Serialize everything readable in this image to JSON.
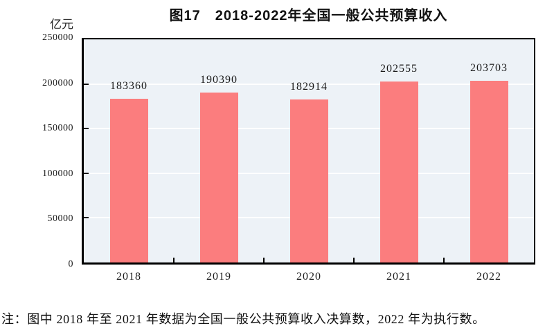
{
  "chart_data": {
    "type": "bar",
    "title": "图17　2018-2022年全国一般公共预算收入",
    "unit_label": "亿元",
    "categories": [
      "2018",
      "2019",
      "2020",
      "2021",
      "2022"
    ],
    "values": [
      183360,
      190390,
      182914,
      202555,
      203703
    ],
    "value_labels": [
      "183360",
      "190390",
      "182914",
      "202555",
      "203703"
    ],
    "ylim": [
      0,
      250000
    ],
    "yticks": [
      0,
      50000,
      100000,
      150000,
      200000,
      250000
    ],
    "ytick_labels": [
      "0",
      "50000",
      "100000",
      "150000",
      "200000",
      "250000"
    ],
    "grid": true,
    "legend": "none",
    "colors": {
      "bar": "#FB7D7E",
      "plot_background": "#EDF2F7",
      "gridline": "#FFFFFF",
      "axis": "#000000",
      "text": "#1A1A1A"
    }
  },
  "note": "注：图中 2018 年至 2021 年数据为全国一般公共预算收入决算数，2022 年为执行数。"
}
